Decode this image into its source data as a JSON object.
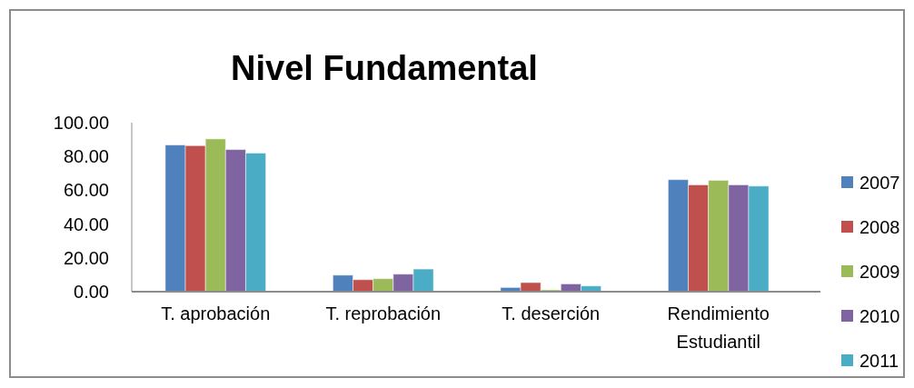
{
  "chart_data": {
    "type": "bar",
    "title": "Nivel Fundamental",
    "categories": [
      "T. aprobación",
      "T. reprobación",
      "T. deserción",
      "Rendimiento Estudiantil"
    ],
    "series": [
      {
        "name": "2007",
        "color": "#4f81bd",
        "values": [
          86.8,
          9.8,
          2.5,
          66.3
        ]
      },
      {
        "name": "2008",
        "color": "#c0504d",
        "values": [
          86.4,
          7.1,
          5.4,
          63.2
        ]
      },
      {
        "name": "2009",
        "color": "#9bbb59",
        "values": [
          90.4,
          7.7,
          1.1,
          65.9
        ]
      },
      {
        "name": "2010",
        "color": "#8064a2",
        "values": [
          84.1,
          10.4,
          4.6,
          63.2
        ]
      },
      {
        "name": "2011",
        "color": "#4bacc6",
        "values": [
          82.0,
          13.4,
          3.4,
          62.5
        ]
      }
    ],
    "ylim": [
      0,
      100
    ],
    "yticks": [
      {
        "value": 0,
        "label": "0.00"
      },
      {
        "value": 20,
        "label": "20.00"
      },
      {
        "value": 40,
        "label": "40.00"
      },
      {
        "value": 60,
        "label": "60.00"
      },
      {
        "value": 80,
        "label": "80.00"
      },
      {
        "value": 100,
        "label": "100.00"
      }
    ],
    "legend": "right",
    "grid": false
  }
}
